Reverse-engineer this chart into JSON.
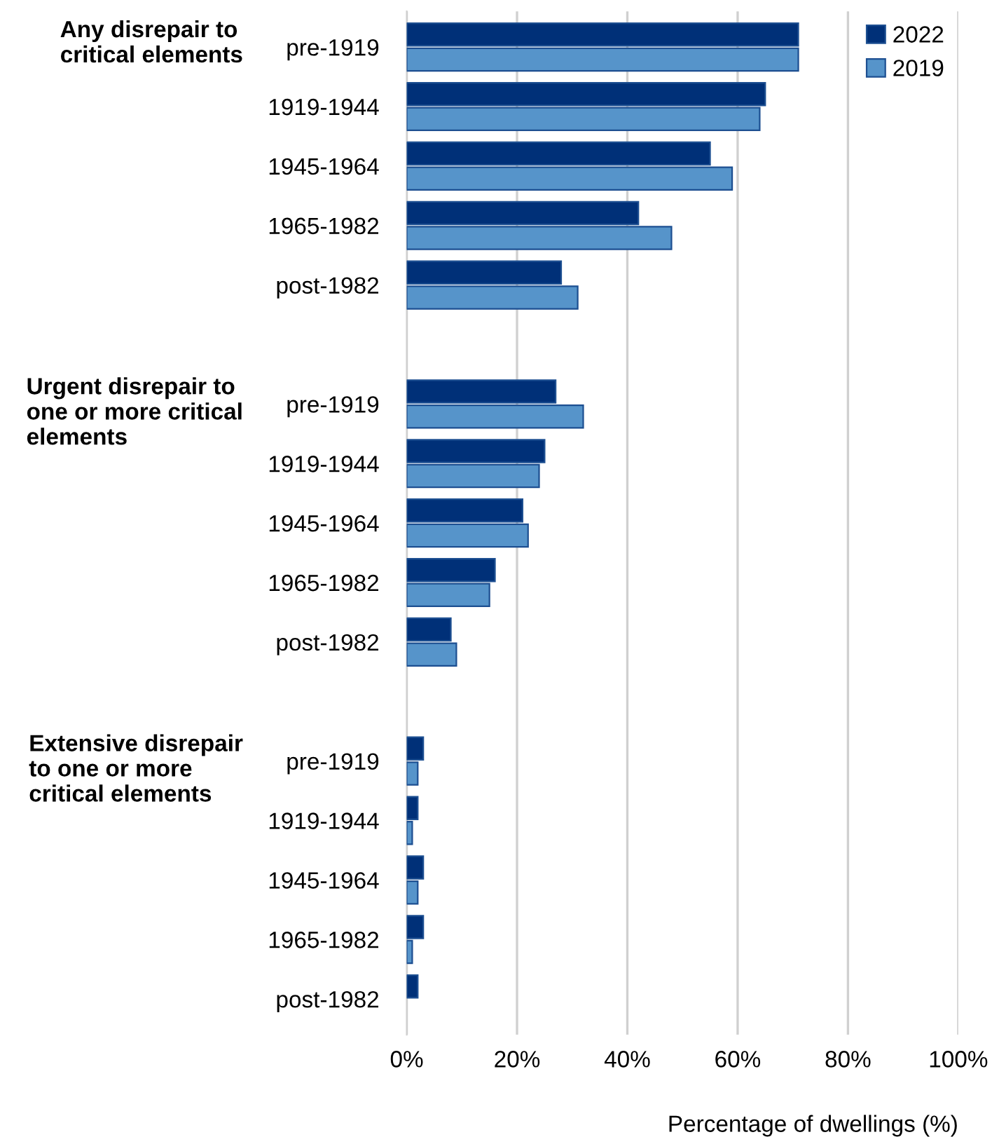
{
  "chart_data": {
    "type": "bar",
    "orientation": "horizontal",
    "xlabel": "Percentage of dwellings (%)",
    "categories": [
      "pre-1919",
      "1919-1944",
      "1945-1964",
      "1965-1982",
      "post-1982",
      null,
      "pre-1919",
      "1919-1944",
      "1945-1964",
      "1965-1982",
      "post-1982",
      null,
      "pre-1919",
      "1919-1944",
      "1945-1964",
      "1965-1982",
      "post-1982"
    ],
    "series": [
      {
        "name": "2022",
        "color": "#003078",
        "values": [
          71,
          65,
          55,
          42,
          28,
          null,
          27,
          25,
          21,
          16,
          8,
          null,
          3,
          2,
          3,
          3,
          2
        ]
      },
      {
        "name": "2019",
        "color": "#5694ca",
        "values": [
          71,
          64,
          59,
          48,
          31,
          null,
          32,
          24,
          22,
          15,
          9,
          null,
          2,
          1,
          2,
          1,
          null
        ]
      }
    ],
    "annotations": [
      "Any disrepair to critical elements",
      "Urgent disrepair to one or more critical elements",
      "Extensive disrepair to one or more critical elements"
    ],
    "xlim": [
      0,
      100
    ],
    "xticks": [
      {
        "value": 0,
        "label": "0%"
      },
      {
        "value": 20,
        "label": "20%"
      },
      {
        "value": 40,
        "label": "40%"
      },
      {
        "value": 60,
        "label": "60%"
      },
      {
        "value": 80,
        "label": "80%"
      },
      {
        "value": 100,
        "label": "100%"
      }
    ],
    "grid": "x",
    "legend": "top right"
  }
}
